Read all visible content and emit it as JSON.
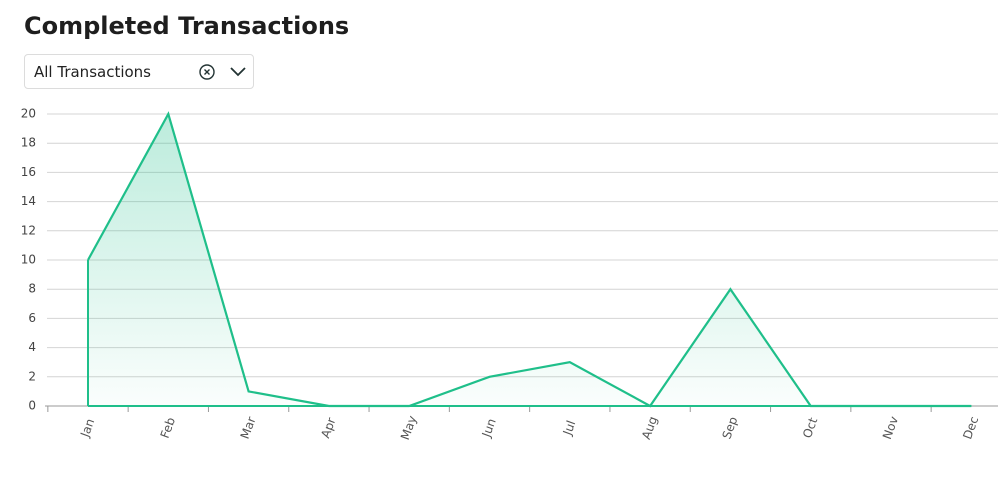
{
  "header": {
    "title": "Completed Transactions"
  },
  "filter": {
    "label": "All Transactions"
  },
  "chart_data": {
    "type": "area",
    "categories": [
      "Jan",
      "Feb",
      "Mar",
      "Apr",
      "May",
      "Jun",
      "Jul",
      "Aug",
      "Sep",
      "Oct",
      "Nov",
      "Dec"
    ],
    "values": [
      10,
      20,
      1,
      0,
      0,
      2,
      3,
      0,
      8,
      0,
      0,
      0
    ],
    "color": "#1fbf8a",
    "ylim": [
      0,
      20
    ],
    "yticks": [
      0,
      2,
      4,
      6,
      8,
      10,
      12,
      14,
      16,
      18,
      20
    ],
    "grid": true
  }
}
